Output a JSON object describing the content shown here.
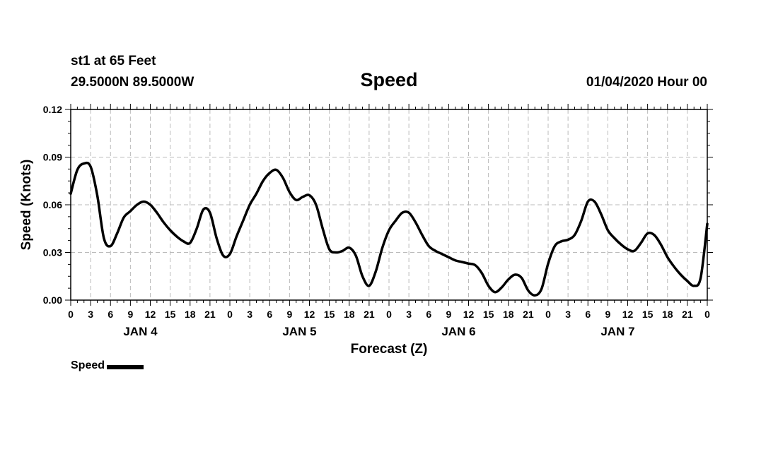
{
  "header": {
    "station": "st1 at 65 Feet",
    "coords": "29.5000N 89.5000W",
    "title": "Speed",
    "datetime": "01/04/2020 Hour 00"
  },
  "colors": {
    "line": "#000000",
    "grid": "#bbbbbb"
  },
  "chart_data": {
    "type": "line",
    "title": "Speed",
    "xlabel": "Forecast (Z)",
    "ylabel": "Speed (Knots)",
    "ylim": [
      0,
      0.12
    ],
    "yticks": [
      "0.00",
      "0.03",
      "0.06",
      "0.09",
      "0.12"
    ],
    "xlim_hours": [
      0,
      96
    ],
    "xtick_labels": [
      "0",
      "3",
      "6",
      "9",
      "12",
      "15",
      "18",
      "21",
      "0",
      "3",
      "6",
      "9",
      "12",
      "15",
      "18",
      "21",
      "0",
      "3",
      "6",
      "9",
      "12",
      "15",
      "18",
      "21",
      "0",
      "3",
      "6",
      "9",
      "12",
      "15",
      "18",
      "21",
      "0"
    ],
    "day_labels": [
      {
        "label": "JAN 4",
        "center_hour": 10.5
      },
      {
        "label": "JAN 5",
        "center_hour": 34.5
      },
      {
        "label": "JAN 6",
        "center_hour": 58.5
      },
      {
        "label": "JAN 7",
        "center_hour": 82.5
      }
    ],
    "series": [
      {
        "name": "Speed",
        "points": [
          [
            0,
            0.067
          ],
          [
            1,
            0.082
          ],
          [
            2,
            0.086
          ],
          [
            3,
            0.084
          ],
          [
            4,
            0.066
          ],
          [
            5,
            0.039
          ],
          [
            6,
            0.034
          ],
          [
            7,
            0.042
          ],
          [
            8,
            0.052
          ],
          [
            9,
            0.056
          ],
          [
            10,
            0.06
          ],
          [
            11,
            0.062
          ],
          [
            12,
            0.06
          ],
          [
            13,
            0.055
          ],
          [
            14,
            0.049
          ],
          [
            15,
            0.044
          ],
          [
            16,
            0.04
          ],
          [
            17,
            0.037
          ],
          [
            18,
            0.036
          ],
          [
            19,
            0.045
          ],
          [
            20,
            0.057
          ],
          [
            21,
            0.055
          ],
          [
            22,
            0.039
          ],
          [
            23,
            0.028
          ],
          [
            24,
            0.029
          ],
          [
            25,
            0.04
          ],
          [
            26,
            0.05
          ],
          [
            27,
            0.06
          ],
          [
            28,
            0.067
          ],
          [
            29,
            0.075
          ],
          [
            30,
            0.08
          ],
          [
            31,
            0.082
          ],
          [
            32,
            0.077
          ],
          [
            33,
            0.068
          ],
          [
            34,
            0.063
          ],
          [
            35,
            0.065
          ],
          [
            36,
            0.066
          ],
          [
            37,
            0.06
          ],
          [
            38,
            0.045
          ],
          [
            39,
            0.032
          ],
          [
            40,
            0.03
          ],
          [
            41,
            0.031
          ],
          [
            42,
            0.033
          ],
          [
            43,
            0.028
          ],
          [
            44,
            0.015
          ],
          [
            45,
            0.009
          ],
          [
            46,
            0.018
          ],
          [
            47,
            0.033
          ],
          [
            48,
            0.044
          ],
          [
            49,
            0.05
          ],
          [
            50,
            0.055
          ],
          [
            51,
            0.055
          ],
          [
            52,
            0.049
          ],
          [
            53,
            0.041
          ],
          [
            54,
            0.034
          ],
          [
            55,
            0.031
          ],
          [
            56,
            0.029
          ],
          [
            57,
            0.027
          ],
          [
            58,
            0.025
          ],
          [
            59,
            0.024
          ],
          [
            60,
            0.023
          ],
          [
            61,
            0.022
          ],
          [
            62,
            0.017
          ],
          [
            63,
            0.009
          ],
          [
            64,
            0.005
          ],
          [
            65,
            0.008
          ],
          [
            66,
            0.013
          ],
          [
            67,
            0.016
          ],
          [
            68,
            0.014
          ],
          [
            69,
            0.006
          ],
          [
            70,
            0.003
          ],
          [
            71,
            0.007
          ],
          [
            72,
            0.023
          ],
          [
            73,
            0.034
          ],
          [
            74,
            0.037
          ],
          [
            75,
            0.038
          ],
          [
            76,
            0.041
          ],
          [
            77,
            0.05
          ],
          [
            78,
            0.062
          ],
          [
            79,
            0.062
          ],
          [
            80,
            0.054
          ],
          [
            81,
            0.044
          ],
          [
            82,
            0.039
          ],
          [
            83,
            0.035
          ],
          [
            84,
            0.032
          ],
          [
            85,
            0.031
          ],
          [
            86,
            0.036
          ],
          [
            87,
            0.042
          ],
          [
            88,
            0.041
          ],
          [
            89,
            0.035
          ],
          [
            90,
            0.027
          ],
          [
            91,
            0.021
          ],
          [
            92,
            0.016
          ],
          [
            93,
            0.012
          ],
          [
            94,
            0.009
          ],
          [
            95,
            0.014
          ],
          [
            96,
            0.048
          ]
        ]
      }
    ]
  },
  "legend": {
    "label": "Speed"
  }
}
